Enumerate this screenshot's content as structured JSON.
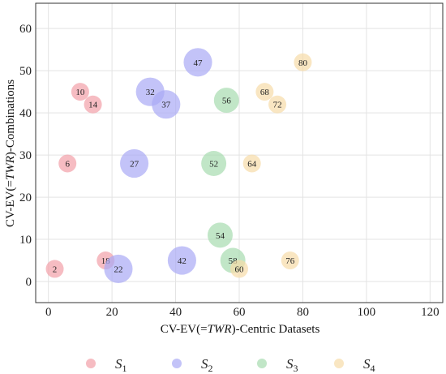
{
  "chart_data": {
    "type": "scatter",
    "xlabel_parts": [
      "CV-EV(=",
      "TWR",
      ")-Centric Datasets"
    ],
    "ylabel_parts": [
      "CV-EV(=",
      "TWR",
      ")-Combinations"
    ],
    "xlim": [
      -4,
      124
    ],
    "ylim": [
      -5,
      66
    ],
    "xticks": [
      0,
      20,
      40,
      60,
      80,
      100,
      120
    ],
    "yticks": [
      0,
      10,
      20,
      30,
      40,
      50,
      60
    ],
    "grid": true,
    "legend_position": "bottom",
    "series": [
      {
        "name": "S1",
        "name_main": "S",
        "name_sub": "1",
        "color": "#f2a0a8",
        "points": [
          {
            "x": 2,
            "y": 3,
            "label": "2",
            "size": 1
          },
          {
            "x": 6,
            "y": 28,
            "label": "6",
            "size": 1
          },
          {
            "x": 10,
            "y": 45,
            "label": "10",
            "size": 1
          },
          {
            "x": 14,
            "y": 42,
            "label": "14",
            "size": 1
          },
          {
            "x": 18,
            "y": 5,
            "label": "18",
            "size": 1
          }
        ]
      },
      {
        "name": "S2",
        "name_main": "S",
        "name_sub": "2",
        "color": "#a9a9f5",
        "points": [
          {
            "x": 22,
            "y": 3,
            "label": "22",
            "size": 2
          },
          {
            "x": 27,
            "y": 28,
            "label": "27",
            "size": 2
          },
          {
            "x": 32,
            "y": 45,
            "label": "32",
            "size": 2
          },
          {
            "x": 37,
            "y": 42,
            "label": "37",
            "size": 2
          },
          {
            "x": 42,
            "y": 5,
            "label": "42",
            "size": 2
          },
          {
            "x": 47,
            "y": 52,
            "label": "47",
            "size": 2
          }
        ]
      },
      {
        "name": "S3",
        "name_main": "S",
        "name_sub": "3",
        "color": "#a7dcaf",
        "points": [
          {
            "x": 52,
            "y": 28,
            "label": "52",
            "size": 1.5
          },
          {
            "x": 54,
            "y": 11,
            "label": "54",
            "size": 1.5
          },
          {
            "x": 56,
            "y": 43,
            "label": "56",
            "size": 1.5
          },
          {
            "x": 58,
            "y": 5,
            "label": "58",
            "size": 1.5
          }
        ]
      },
      {
        "name": "S4",
        "name_main": "S",
        "name_sub": "4",
        "color": "#f7dca8",
        "points": [
          {
            "x": 60,
            "y": 3,
            "label": "60",
            "size": 1
          },
          {
            "x": 64,
            "y": 28,
            "label": "64",
            "size": 1
          },
          {
            "x": 68,
            "y": 45,
            "label": "68",
            "size": 1
          },
          {
            "x": 72,
            "y": 42,
            "label": "72",
            "size": 1
          },
          {
            "x": 76,
            "y": 5,
            "label": "76",
            "size": 1
          },
          {
            "x": 80,
            "y": 52,
            "label": "80",
            "size": 1
          }
        ]
      }
    ]
  }
}
